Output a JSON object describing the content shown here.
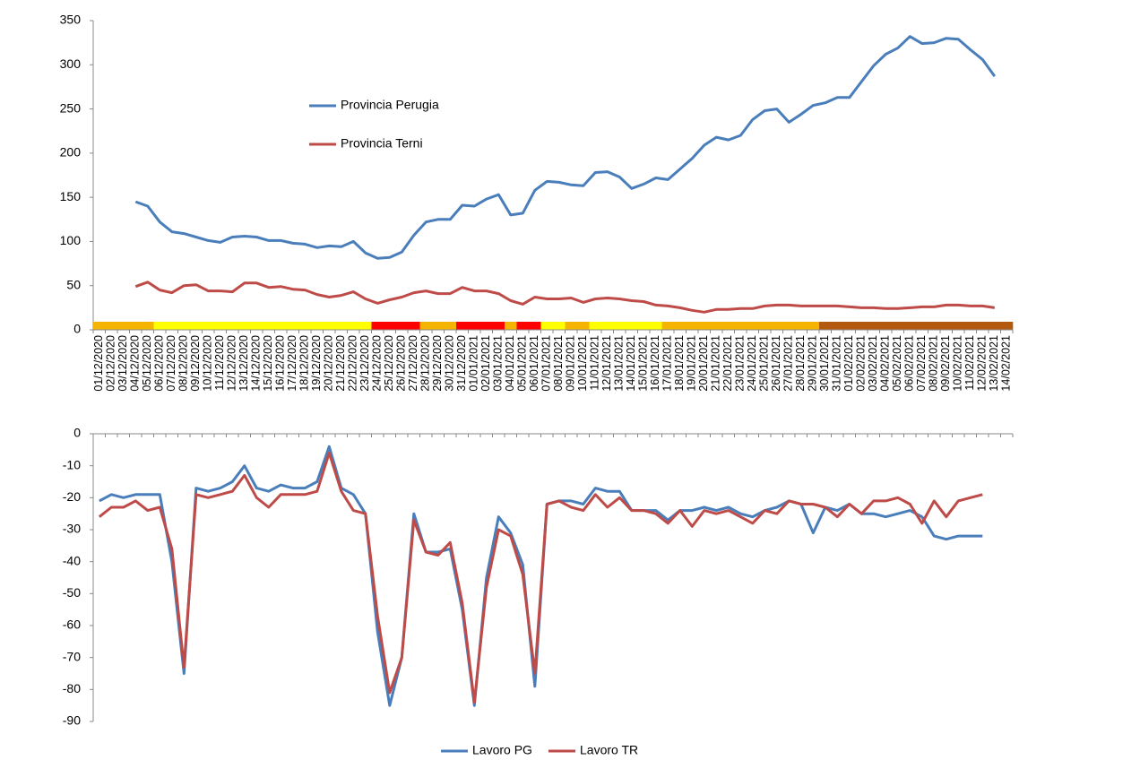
{
  "chart_data": [
    {
      "type": "line",
      "categories": [
        "01/12/2020",
        "02/12/2020",
        "03/12/2020",
        "04/12/2020",
        "05/12/2020",
        "06/12/2020",
        "07/12/2020",
        "08/12/2020",
        "09/12/2020",
        "10/12/2020",
        "11/12/2020",
        "12/12/2020",
        "13/12/2020",
        "14/12/2020",
        "15/12/2020",
        "16/12/2020",
        "17/12/2020",
        "18/12/2020",
        "19/12/2020",
        "20/12/2020",
        "21/12/2020",
        "22/12/2020",
        "23/12/2020",
        "24/12/2020",
        "25/12/2020",
        "26/12/2020",
        "27/12/2020",
        "28/12/2020",
        "29/12/2020",
        "30/12/2020",
        "31/12/2020",
        "01/01/2021",
        "02/01/2021",
        "03/01/2021",
        "04/01/2021",
        "05/01/2021",
        "06/01/2021",
        "07/01/2021",
        "08/01/2021",
        "09/01/2021",
        "10/01/2021",
        "11/01/2021",
        "12/01/2021",
        "13/01/2021",
        "14/01/2021",
        "15/01/2021",
        "16/01/2021",
        "17/01/2021",
        "18/01/2021",
        "19/01/2021",
        "20/01/2021",
        "21/01/2021",
        "22/01/2021",
        "23/01/2021",
        "24/01/2021",
        "25/01/2021",
        "26/01/2021",
        "27/01/2021",
        "28/01/2021",
        "29/01/2021",
        "30/01/2021",
        "31/01/2021",
        "01/02/2021",
        "02/02/2021",
        "03/02/2021",
        "04/02/2021",
        "05/02/2021",
        "06/02/2021",
        "07/02/2021",
        "08/02/2021",
        "09/02/2021",
        "10/02/2021",
        "11/02/2021",
        "12/02/2021",
        "13/02/2021",
        "14/02/2021"
      ],
      "series": [
        {
          "name": "Provincia Perugia",
          "color": "#4a7ebb",
          "values": [
            null,
            null,
            null,
            145,
            140,
            122,
            111,
            109,
            105,
            101,
            99,
            105,
            106,
            105,
            101,
            101,
            98,
            97,
            93,
            95,
            94,
            100,
            87,
            81,
            82,
            88,
            107,
            122,
            125,
            125,
            141,
            140,
            148,
            153,
            130,
            132,
            158,
            168,
            167,
            164,
            163,
            178,
            179,
            173,
            160,
            165,
            172,
            170,
            182,
            194,
            209,
            218,
            215,
            220,
            238,
            248,
            250,
            235,
            244,
            254,
            257,
            263,
            263,
            281,
            299,
            312,
            319,
            332,
            324,
            325,
            330,
            329,
            317,
            306,
            287,
            null
          ]
        },
        {
          "name": "Provincia Terni",
          "color": "#be4b48",
          "values": [
            null,
            null,
            null,
            49,
            54,
            45,
            42,
            50,
            51,
            44,
            44,
            43,
            53,
            53,
            48,
            49,
            46,
            45,
            40,
            37,
            39,
            43,
            35,
            30,
            34,
            37,
            42,
            44,
            41,
            41,
            48,
            44,
            44,
            41,
            33,
            29,
            37,
            35,
            35,
            36,
            31,
            35,
            36,
            35,
            33,
            32,
            28,
            27,
            25,
            22,
            20,
            23,
            23,
            24,
            24,
            27,
            28,
            28,
            27,
            27,
            27,
            27,
            26,
            25,
            25,
            24,
            24,
            25,
            26,
            26,
            28,
            28,
            27,
            27,
            25,
            null
          ]
        }
      ],
      "zone_colors": [
        "#f5b400",
        "#f5b400",
        "#f5b400",
        "#f5b400",
        "#f5b400",
        "#ffff00",
        "#ffff00",
        "#ffff00",
        "#ffff00",
        "#ffff00",
        "#ffff00",
        "#ffff00",
        "#ffff00",
        "#ffff00",
        "#ffff00",
        "#ffff00",
        "#ffff00",
        "#ffff00",
        "#ffff00",
        "#ffff00",
        "#ffff00",
        "#ffff00",
        "#ffff00",
        "#ff0000",
        "#ff0000",
        "#ff0000",
        "#ff0000",
        "#f5b400",
        "#f5b400",
        "#f5b400",
        "#ff0000",
        "#ff0000",
        "#ff0000",
        "#ff0000",
        "#f5b400",
        "#ff0000",
        "#ff0000",
        "#ffff00",
        "#ffff00",
        "#f5b400",
        "#f5b400",
        "#ffff00",
        "#ffff00",
        "#ffff00",
        "#ffff00",
        "#ffff00",
        "#ffff00",
        "#f5b400",
        "#f5b400",
        "#f5b400",
        "#f5b400",
        "#f5b400",
        "#f5b400",
        "#f5b400",
        "#f5b400",
        "#f5b400",
        "#f5b400",
        "#f5b400",
        "#f5b400",
        "#f5b400",
        "#b35a10",
        "#b35a10",
        "#b35a10",
        "#b35a10",
        "#b35a10",
        "#b35a10",
        "#b35a10",
        "#b35a10",
        "#b35a10",
        "#b35a10",
        "#b35a10",
        "#b35a10",
        "#b35a10",
        "#b35a10",
        "#b35a10",
        "#b35a10"
      ],
      "ylim": [
        0,
        350
      ],
      "yticks": [
        0,
        50,
        100,
        150,
        200,
        250,
        300,
        350
      ]
    },
    {
      "type": "line",
      "series": [
        {
          "name": "Lavoro PG",
          "color": "#4a7ebb",
          "values": [
            -21,
            -19,
            -20,
            -19,
            -19,
            -19,
            -40,
            -75,
            -17,
            -18,
            -17,
            -15,
            -10,
            -17,
            -18,
            -16,
            -17,
            -17,
            -15,
            -4,
            -17,
            -19,
            -25,
            -62,
            -85,
            -70,
            -25,
            -37,
            -37,
            -36,
            -55,
            -85,
            -45,
            -26,
            -31,
            -41,
            -79,
            -22,
            -21,
            -21,
            -22,
            -17,
            -18,
            -18,
            -24,
            -24,
            -24,
            -27,
            -24,
            -24,
            -23,
            -24,
            -23,
            -25,
            -26,
            -24,
            -23,
            -21,
            -22,
            -31,
            -23,
            -24,
            -22,
            -25,
            -25,
            -26,
            -25,
            -24,
            -26,
            -32,
            -33,
            -32,
            -32,
            -32,
            null,
            null
          ]
        },
        {
          "name": "Lavoro TR",
          "color": "#be4b48",
          "values": [
            -26,
            -23,
            -23,
            -21,
            -24,
            -23,
            -36,
            -73,
            -19,
            -20,
            -19,
            -18,
            -13,
            -20,
            -23,
            -19,
            -19,
            -19,
            -18,
            -6,
            -18,
            -24,
            -25,
            -57,
            -81,
            -70,
            -27,
            -37,
            -38,
            -34,
            -53,
            -84,
            -48,
            -30,
            -32,
            -44,
            -75,
            -22,
            -21,
            -23,
            -24,
            -19,
            -23,
            -20,
            -24,
            -24,
            -25,
            -28,
            -24,
            -29,
            -24,
            -25,
            -24,
            -26,
            -28,
            -24,
            -25,
            -21,
            -22,
            -22,
            -23,
            -26,
            -22,
            -25,
            -21,
            -21,
            -20,
            -22,
            -28,
            -21,
            -26,
            -21,
            -20,
            -19,
            null,
            null
          ]
        }
      ],
      "ylim": [
        -90,
        0
      ],
      "yticks": [
        0,
        -10,
        -20,
        -30,
        -40,
        -50,
        -60,
        -70,
        -80,
        -90
      ]
    }
  ]
}
